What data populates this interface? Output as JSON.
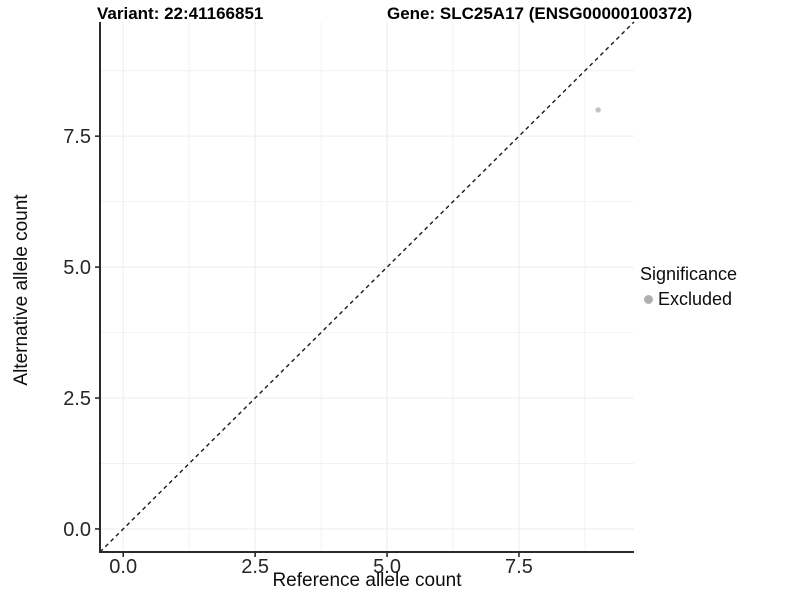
{
  "chart_data": {
    "type": "scatter",
    "titles": {
      "left": "Variant: 22:41166851",
      "right": "Gene: SLC25A17 (ENSG00000100372)"
    },
    "xlabel": "Reference allele count",
    "ylabel": "Alternative allele count",
    "xlim": [
      -0.44,
      9.68
    ],
    "ylim": [
      -0.44,
      9.68
    ],
    "x_tick_values": [
      0,
      2.5,
      5,
      7.5
    ],
    "x_tick_labels": [
      "0.0",
      "2.5",
      "5.0",
      "7.5"
    ],
    "y_tick_values": [
      0,
      2.5,
      5,
      7.5
    ],
    "y_tick_labels": [
      "0.0",
      "2.5",
      "5.0",
      "7.5"
    ],
    "x_minor_ticks": [
      1.25,
      3.75,
      6.25,
      8.75
    ],
    "y_minor_ticks": [
      1.25,
      3.75,
      6.25,
      8.75
    ],
    "grid": {
      "show": true,
      "major_color": "#ececec",
      "minor_color": "#f2f2f2"
    },
    "axis_color": "#2b2b2b",
    "reference_line": {
      "kind": "identity y=x",
      "style": "dashed",
      "color": "#1a1a1a"
    },
    "series": [
      {
        "name": "Excluded",
        "color": "#c2c2c2",
        "marker": "circle",
        "marker_radius": 2.7,
        "points": [
          {
            "x": 9,
            "y": 8
          }
        ]
      }
    ],
    "legend": {
      "title": "Significance",
      "position": "right",
      "entries": [
        {
          "label": "Excluded",
          "color": "#b0b0b0"
        }
      ]
    }
  }
}
